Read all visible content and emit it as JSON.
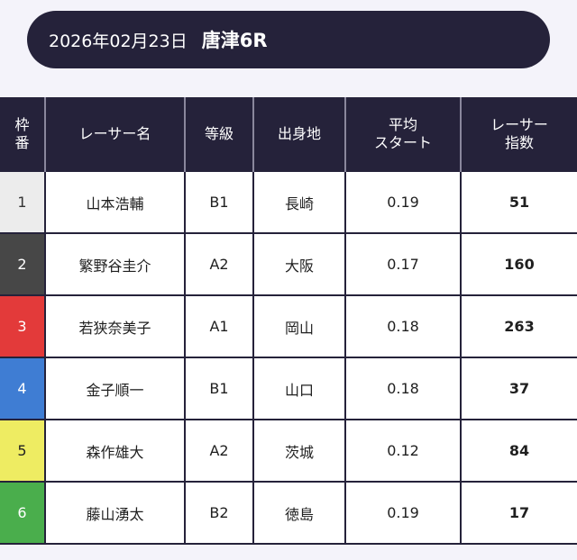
{
  "header": {
    "date": "2026年02月23日",
    "race": "唐津6R"
  },
  "table": {
    "columns": {
      "frame": [
        "枠",
        "番"
      ],
      "racer": "レーサー名",
      "grade": "等級",
      "hometown": "出身地",
      "avg_start": [
        "平均",
        "スタート"
      ],
      "index": [
        "レーサー",
        "指数"
      ]
    },
    "rows": [
      {
        "frame": "1",
        "racer": "山本浩輔",
        "grade": "B1",
        "hometown": "長崎",
        "avg_start": "0.19",
        "index": "51",
        "frame_bg": "#ececec",
        "frame_fg": "#333333"
      },
      {
        "frame": "2",
        "racer": "繁野谷圭介",
        "grade": "A2",
        "hometown": "大阪",
        "avg_start": "0.17",
        "index": "160",
        "frame_bg": "#474747",
        "frame_fg": "#ffffff"
      },
      {
        "frame": "3",
        "racer": "若狭奈美子",
        "grade": "A1",
        "hometown": "岡山",
        "avg_start": "0.18",
        "index": "263",
        "frame_bg": "#e33a3a",
        "frame_fg": "#ffffff"
      },
      {
        "frame": "4",
        "racer": "金子順一",
        "grade": "B1",
        "hometown": "山口",
        "avg_start": "0.18",
        "index": "37",
        "frame_bg": "#3f7dd3",
        "frame_fg": "#ffffff"
      },
      {
        "frame": "5",
        "racer": "森作雄大",
        "grade": "A2",
        "hometown": "茨城",
        "avg_start": "0.12",
        "index": "84",
        "frame_bg": "#eeec62",
        "frame_fg": "#222222"
      },
      {
        "frame": "6",
        "racer": "藤山湧太",
        "grade": "B2",
        "hometown": "徳島",
        "avg_start": "0.19",
        "index": "17",
        "frame_bg": "#4aae4c",
        "frame_fg": "#ffffff"
      }
    ]
  }
}
